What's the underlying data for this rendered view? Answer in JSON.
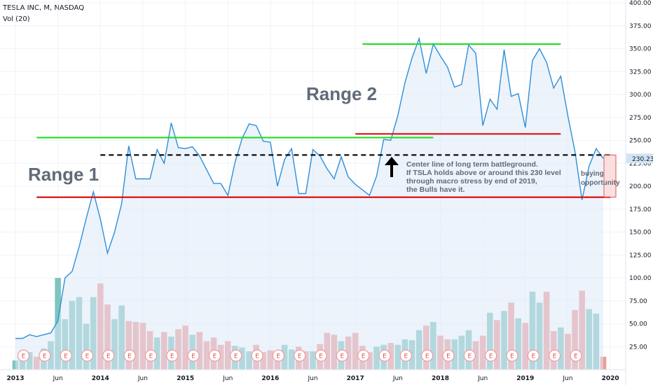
{
  "header": {
    "symbol_line": "TESLA INC, M, NASDAQ",
    "volume_line": "Vol (20)"
  },
  "annotations": {
    "range1": "Range 1",
    "range2": "Range 2",
    "note_lines": [
      "Center line of long term battleground.",
      "If TSLA holds above or around this 230 level",
      "through macro stress by end of 2019,",
      "the Bulls have it."
    ],
    "buying_lines": [
      "buying",
      "opportunity"
    ],
    "earnings_marker": "E"
  },
  "colors": {
    "price_line": "#2f8fd8",
    "price_fill": "#dceaf8",
    "vol_up": "#7fc4bf",
    "vol_down": "#ef9a9a",
    "green_line": "#22dd22",
    "red_line": "#dd1111",
    "dashed": "#000000",
    "price_tag": "#d1e4f6"
  },
  "chart_data": {
    "type": "line",
    "title": "TESLA INC, M, NASDAQ",
    "x_start": "2013-01",
    "x_tick_labels": [
      "2013",
      "Jun",
      "2014",
      "Jun",
      "2015",
      "Jun",
      "2016",
      "Jun",
      "2017",
      "Jun",
      "2018",
      "Jun",
      "2019",
      "Jun",
      "2020"
    ],
    "y_tick_labels": [
      "25.00",
      "50.00",
      "75.00",
      "100.00",
      "125.00",
      "150.00",
      "175.00",
      "200.00",
      "225.00",
      "250.00",
      "275.00",
      "300.00",
      "325.00",
      "350.00",
      "375.00",
      "400.00"
    ],
    "ylim": [
      0,
      400
    ],
    "price_label": "230.23",
    "price": [
      34,
      34,
      38,
      36,
      38,
      40,
      53,
      100,
      107,
      134,
      165,
      194,
      164,
      127,
      150,
      181,
      244,
      208,
      208,
      208,
      240,
      225,
      269,
      242,
      241,
      243,
      233,
      218,
      203,
      203,
      190,
      226,
      252,
      268,
      266,
      249,
      248,
      200,
      229,
      241,
      192,
      192,
      240,
      233,
      219,
      208,
      232,
      210,
      202,
      196,
      190,
      211,
      251,
      250,
      277,
      313,
      340,
      361,
      323,
      355,
      342,
      330,
      308,
      311,
      354,
      345,
      266,
      295,
      284,
      349,
      298,
      301,
      264,
      337,
      350,
      335,
      307,
      320,
      277,
      238,
      185,
      222,
      241,
      230.23
    ],
    "volume": [
      10,
      14,
      19,
      14,
      23,
      31,
      100,
      55,
      75,
      79,
      50,
      79,
      94,
      71,
      55,
      70,
      53,
      52,
      51,
      42,
      35,
      41,
      36,
      44,
      48,
      38,
      41,
      31,
      35,
      27,
      31,
      26,
      24,
      20,
      27,
      19,
      21,
      20,
      27,
      22,
      25,
      20,
      20,
      28,
      40,
      38,
      31,
      36,
      40,
      26,
      19,
      25,
      27,
      29,
      27,
      33,
      32,
      43,
      48,
      52,
      37,
      33,
      33,
      37,
      43,
      31,
      37,
      62,
      54,
      64,
      73,
      56,
      51,
      85,
      73,
      85,
      42,
      46,
      39,
      65,
      86,
      66,
      61,
      14
    ],
    "volume_up": [
      true,
      true,
      true,
      false,
      true,
      true,
      true,
      true,
      true,
      true,
      true,
      true,
      false,
      false,
      true,
      true,
      false,
      false,
      false,
      false,
      true,
      false,
      true,
      false,
      false,
      true,
      false,
      false,
      false,
      false,
      false,
      true,
      true,
      true,
      false,
      false,
      false,
      false,
      true,
      true,
      false,
      false,
      true,
      false,
      false,
      false,
      true,
      false,
      false,
      false,
      false,
      true,
      true,
      false,
      true,
      true,
      true,
      true,
      false,
      true,
      false,
      false,
      true,
      true,
      true,
      false,
      false,
      true,
      false,
      true,
      false,
      true,
      false,
      true,
      true,
      false,
      false,
      true,
      false,
      false,
      false,
      true,
      true,
      false
    ],
    "levels": [
      {
        "name": "range1-top",
        "value": 253,
        "from": "2013-04",
        "to": "2017-12"
      },
      {
        "name": "range1-bottom",
        "value": 188,
        "from": "2013-04",
        "to": "2020-01"
      },
      {
        "name": "range2-top",
        "value": 355,
        "from": "2017-02",
        "to": "2019-06"
      },
      {
        "name": "range2-bottom",
        "value": 257,
        "from": "2017-01",
        "to": "2019-06"
      },
      {
        "name": "center-line",
        "value": 234,
        "from": "2014-01",
        "to": "2020-01"
      }
    ]
  }
}
